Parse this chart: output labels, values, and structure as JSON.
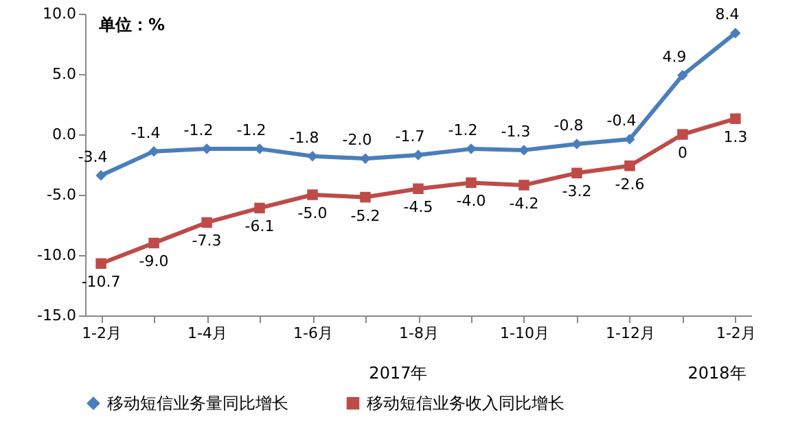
{
  "chart_data": {
    "type": "line",
    "categories": [
      "1-2月",
      null,
      "1-4月",
      null,
      "1-6月",
      null,
      "1-8月",
      null,
      "1-10月",
      null,
      "1-12月",
      null,
      "1-2月"
    ],
    "series": [
      {
        "name": "移动短信业务量同比增长",
        "color": "#4a7ebb",
        "marker": "diamond",
        "values": [
          -3.4,
          -1.4,
          -1.2,
          -1.2,
          -1.8,
          -2.0,
          -1.7,
          -1.2,
          -1.3,
          -0.8,
          -0.4,
          4.9,
          8.4
        ],
        "value_labels": [
          "-3.4",
          "-1.4",
          "-1.2",
          "-1.2",
          "-1.8",
          "-2.0",
          "-1.7",
          "-1.2",
          "-1.3",
          "-0.8",
          "-0.4",
          "4.9",
          "8.4"
        ]
      },
      {
        "name": "移动短信业务收入同比增长",
        "color": "#be4b48",
        "marker": "square",
        "values": [
          -10.7,
          -9.0,
          -7.3,
          -6.1,
          -5.0,
          -5.2,
          -4.5,
          -4.0,
          -4.2,
          -3.2,
          -2.6,
          0,
          1.3
        ],
        "value_labels": [
          "-10.7",
          "-9.0",
          "-7.3",
          "-6.1",
          "-5.0",
          "-5.2",
          "-4.5",
          "-4.0",
          "-4.2",
          "-3.2",
          "-2.6",
          "0",
          "1.3"
        ]
      }
    ],
    "ylim": [
      -15,
      10
    ],
    "yticks": [
      {
        "value": -15,
        "label": "-15.0"
      },
      {
        "value": -10,
        "label": "-10.0"
      },
      {
        "value": -5,
        "label": "-5.0"
      },
      {
        "value": 0,
        "label": "0.0"
      },
      {
        "value": 5,
        "label": "5.0"
      },
      {
        "value": 10,
        "label": "10.0"
      }
    ],
    "annotations": [
      "单位：%",
      "2017年",
      "2018年"
    ],
    "grid": false,
    "legend": "bottom",
    "line_style": "solid"
  }
}
